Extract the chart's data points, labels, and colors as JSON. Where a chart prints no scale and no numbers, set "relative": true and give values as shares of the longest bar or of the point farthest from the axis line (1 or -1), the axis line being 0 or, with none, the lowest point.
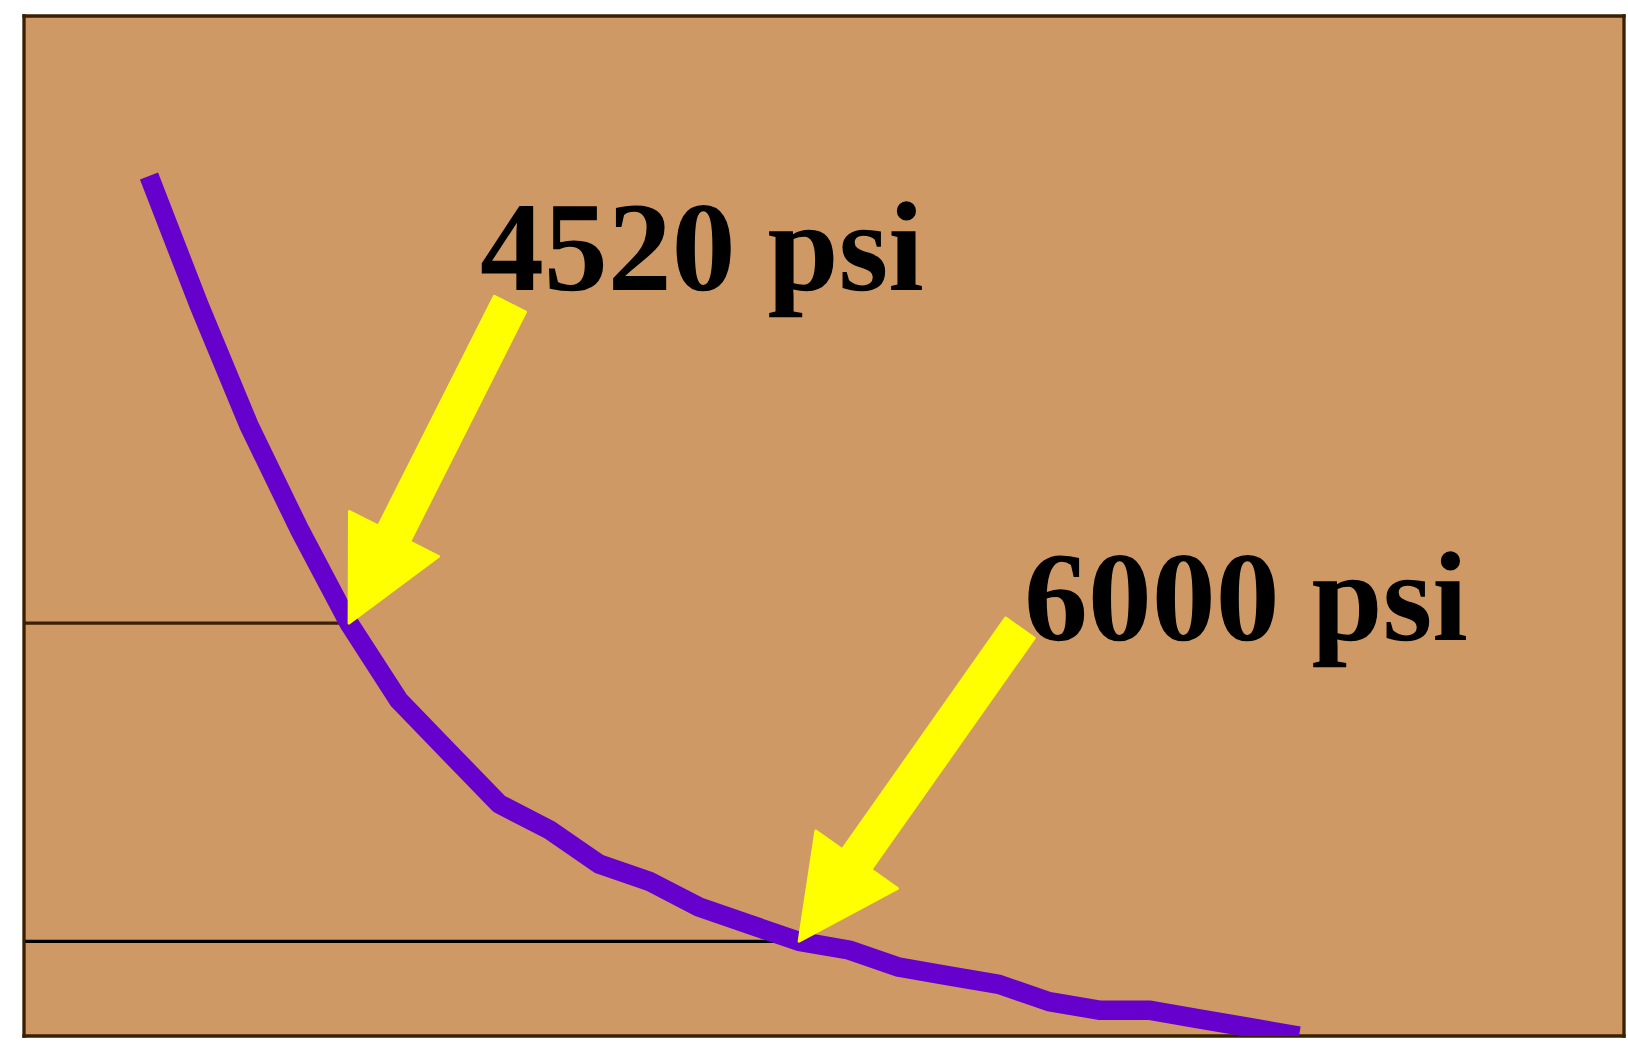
{
  "chart_data": {
    "type": "line",
    "relative": true,
    "categories": [
      null,
      null,
      null,
      null,
      null,
      null,
      null,
      null,
      null,
      null,
      null,
      null,
      null,
      null,
      null,
      null,
      null,
      null,
      null,
      null,
      null,
      null,
      null,
      null,
      null,
      null,
      null,
      null,
      null,
      null,
      null,
      null
    ],
    "series": [
      {
        "color": "#6600cc",
        "values": [
          null,
          null,
          1.0,
          0.85,
          0.71,
          0.59,
          0.48,
          0.39,
          0.33,
          0.27,
          0.24,
          0.2,
          0.18,
          0.15,
          0.13,
          0.11,
          0.1,
          0.08,
          0.07,
          0.06,
          0.04,
          0.03,
          0.03,
          0.02,
          0.01,
          0.0,
          null,
          null,
          null,
          null,
          null,
          null
        ]
      }
    ],
    "ref_lines": [
      {
        "axis": "y",
        "value": 0.48,
        "color": "#3a2000"
      },
      {
        "axis": "y",
        "value": 0.11,
        "color": "#000000"
      }
    ],
    "annotations": [
      "4520 psi",
      "6000 psi"
    ],
    "grid": false
  }
}
